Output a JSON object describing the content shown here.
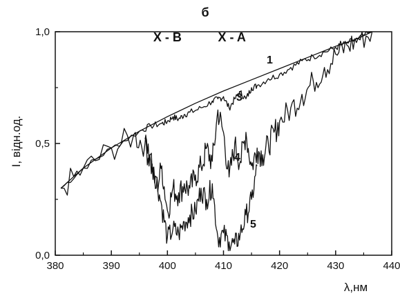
{
  "chart_data": {
    "type": "line",
    "title": "б",
    "xlabel": "λ,нм",
    "ylabel": "I, відн.од.",
    "xlim": [
      380,
      440
    ],
    "ylim": [
      0,
      1
    ],
    "x_ticks": [
      380,
      390,
      400,
      410,
      420,
      430,
      440
    ],
    "x_tick_labels": [
      "380",
      "390",
      "400",
      "410",
      "420",
      "430",
      "440"
    ],
    "y_ticks": [
      0,
      0.5,
      1
    ],
    "y_tick_labels": [
      "0,0",
      "0,5",
      "1,0"
    ],
    "grid": false,
    "band_labels": [
      {
        "text": "X - B",
        "x": 400
      },
      {
        "text": "X - A",
        "x": 411.5
      }
    ],
    "series": [
      {
        "name": "1",
        "noise": 0,
        "x": [
          381,
          385,
          390,
          395,
          400,
          405,
          410,
          415,
          420,
          425,
          430,
          434,
          436.5
        ],
        "y": [
          0.3,
          0.39,
          0.48,
          0.555,
          0.62,
          0.68,
          0.735,
          0.785,
          0.835,
          0.885,
          0.935,
          0.97,
          1.0
        ]
      },
      {
        "name": "3",
        "noise": 0.015,
        "x": [
          381,
          385,
          390,
          395,
          397,
          399,
          400,
          401,
          402,
          403,
          404,
          406,
          408,
          409,
          410,
          411,
          412,
          413,
          414,
          415,
          416,
          418,
          420,
          422,
          424,
          426,
          428,
          430,
          432,
          434,
          436.5
        ],
        "y": [
          0.3,
          0.39,
          0.48,
          0.555,
          0.58,
          0.59,
          0.6,
          0.62,
          0.61,
          0.63,
          0.64,
          0.66,
          0.69,
          0.7,
          0.71,
          0.66,
          0.7,
          0.73,
          0.7,
          0.75,
          0.76,
          0.79,
          0.81,
          0.84,
          0.87,
          0.89,
          0.91,
          0.93,
          0.95,
          0.97,
          1.0
        ]
      },
      {
        "name": "4",
        "noise": 0.06,
        "x": [
          381,
          385,
          390,
          394,
          396,
          397,
          398,
          399,
          400,
          401,
          402,
          403,
          404,
          405,
          406,
          407,
          408,
          409,
          410,
          411,
          412,
          413,
          414,
          415,
          416,
          417,
          418,
          419,
          420,
          422,
          424,
          426,
          428,
          430,
          432,
          434,
          436.5
        ],
        "y": [
          0.3,
          0.39,
          0.48,
          0.54,
          0.5,
          0.42,
          0.3,
          0.4,
          0.2,
          0.3,
          0.28,
          0.32,
          0.3,
          0.36,
          0.4,
          0.48,
          0.42,
          0.65,
          0.55,
          0.35,
          0.5,
          0.42,
          0.55,
          0.4,
          0.48,
          0.45,
          0.5,
          0.55,
          0.6,
          0.66,
          0.72,
          0.78,
          0.84,
          0.9,
          0.94,
          0.97,
          1.0
        ]
      },
      {
        "name": "5",
        "noise": 0.05,
        "x": [
          396,
          397,
          398,
          399,
          400,
          401,
          402,
          403,
          404,
          405,
          406,
          407,
          408,
          409,
          410,
          411,
          412,
          413,
          414,
          415,
          416
        ],
        "y": [
          0.52,
          0.45,
          0.35,
          0.22,
          0.08,
          0.12,
          0.1,
          0.15,
          0.18,
          0.2,
          0.3,
          0.25,
          0.32,
          0.08,
          0.1,
          0.06,
          0.05,
          0.1,
          0.18,
          0.25,
          0.4
        ]
      }
    ]
  }
}
